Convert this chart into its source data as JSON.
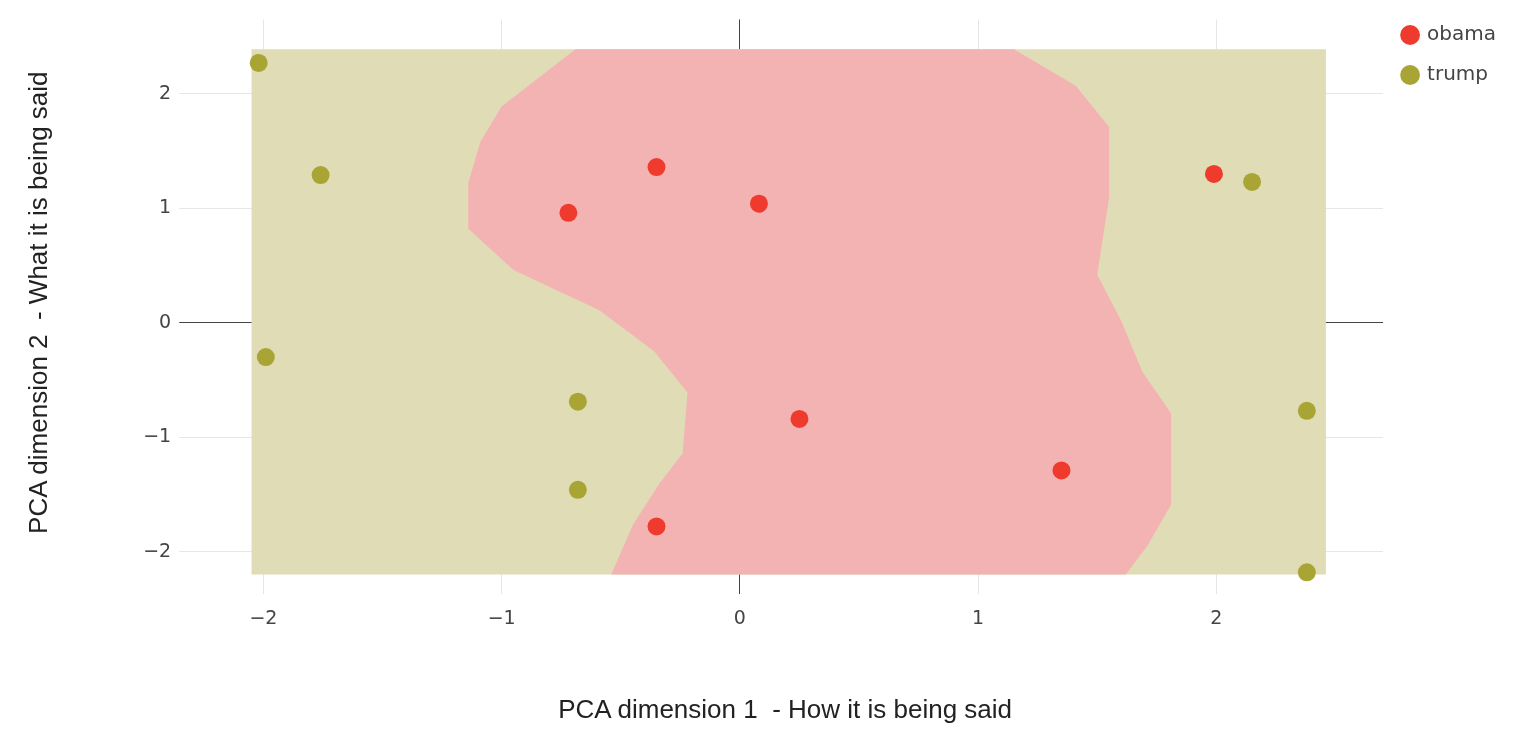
{
  "chart_data": {
    "type": "scatter",
    "xlabel": "PCA dimension 1  - How it is being said",
    "ylabel": "PCA dimension 2  - What it is being said",
    "xlim": [
      -2.32,
      2.7
    ],
    "ylim": [
      -2.3,
      2.65
    ],
    "xticks": [
      {
        "value": -2,
        "label": "−2"
      },
      {
        "value": -1,
        "label": "−1"
      },
      0,
      1,
      2
    ],
    "yticks": [
      {
        "value": -2,
        "label": "−2"
      },
      {
        "value": -1,
        "label": "−1"
      },
      0,
      1,
      2
    ],
    "grid": true,
    "legend": "top right",
    "series": [
      {
        "type": "area",
        "color": "#dfdcb6",
        "x": [
          -2.05,
          2.46,
          2.46,
          -2.05,
          -2.05
        ],
        "values": [
          -2.2,
          -2.2,
          2.39,
          2.39,
          -2.2
        ]
      },
      {
        "type": "area",
        "color": "#f4b3b3",
        "x": [
          -0.69,
          1.15,
          1.41,
          1.55,
          1.55,
          1.5,
          1.6,
          1.69,
          1.81,
          1.81,
          1.71,
          1.62,
          -0.54,
          -0.45,
          -0.34,
          -0.24,
          -0.22,
          -0.36,
          -0.59,
          -0.95,
          -1.14,
          -1.14,
          -1.09,
          -1.0,
          -0.69
        ],
        "values": [
          2.39,
          2.39,
          2.07,
          1.71,
          1.09,
          0.42,
          0.02,
          -0.43,
          -0.79,
          -1.59,
          -1.95,
          -2.2,
          -2.2,
          -1.77,
          -1.41,
          -1.14,
          -0.61,
          -0.25,
          0.11,
          0.46,
          0.82,
          1.22,
          1.58,
          1.89,
          2.39
        ]
      },
      {
        "name": "obama",
        "marker": "circle",
        "color": "#ee3b2d",
        "x": [
          -0.72,
          -0.35,
          0.08,
          1.99,
          0.25,
          1.35,
          -0.35
        ],
        "values": [
          0.96,
          1.36,
          1.04,
          1.3,
          -0.84,
          -1.29,
          -1.78
        ]
      },
      {
        "name": "trump",
        "marker": "circle",
        "color": "#a9a534",
        "x": [
          -2.02,
          -1.76,
          2.15,
          -1.99,
          -0.68,
          -0.68,
          2.38,
          2.38
        ],
        "values": [
          2.27,
          1.29,
          1.23,
          -0.3,
          -0.69,
          -1.46,
          -0.77,
          -2.18
        ]
      }
    ]
  }
}
